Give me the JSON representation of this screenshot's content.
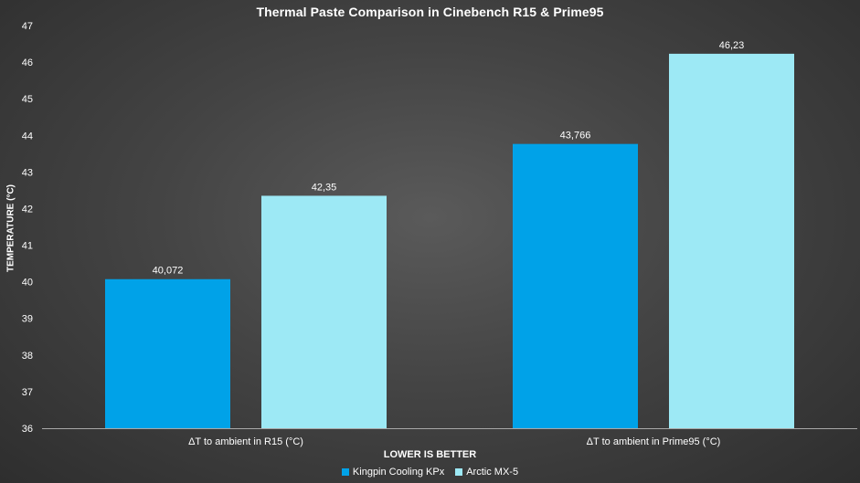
{
  "chart_data": {
    "type": "bar",
    "title": "Thermal Paste Comparison in Cinebench R15 & Prime95",
    "xlabel": "LOWER IS BETTER",
    "ylabel": "TEMPERATURE (°C)",
    "categories": [
      "ΔT to ambient in R15 (°C)",
      "ΔT to ambient in Prime95 (°C)"
    ],
    "series": [
      {
        "name": "Kingpin Cooling KPx",
        "color": "#00a2e8",
        "values": [
          40.072,
          43.766
        ],
        "labels": [
          "40,072",
          "43,766"
        ]
      },
      {
        "name": "Arctic MX-5",
        "color": "#9de9f5",
        "values": [
          42.35,
          46.23
        ],
        "labels": [
          "42,35",
          "46,23"
        ]
      }
    ],
    "ylim": [
      36,
      47
    ],
    "yticks": [
      "36",
      "37",
      "38",
      "39",
      "40",
      "41",
      "42",
      "43",
      "44",
      "45",
      "46",
      "47"
    ],
    "grid": false,
    "legend_position": "bottom"
  }
}
